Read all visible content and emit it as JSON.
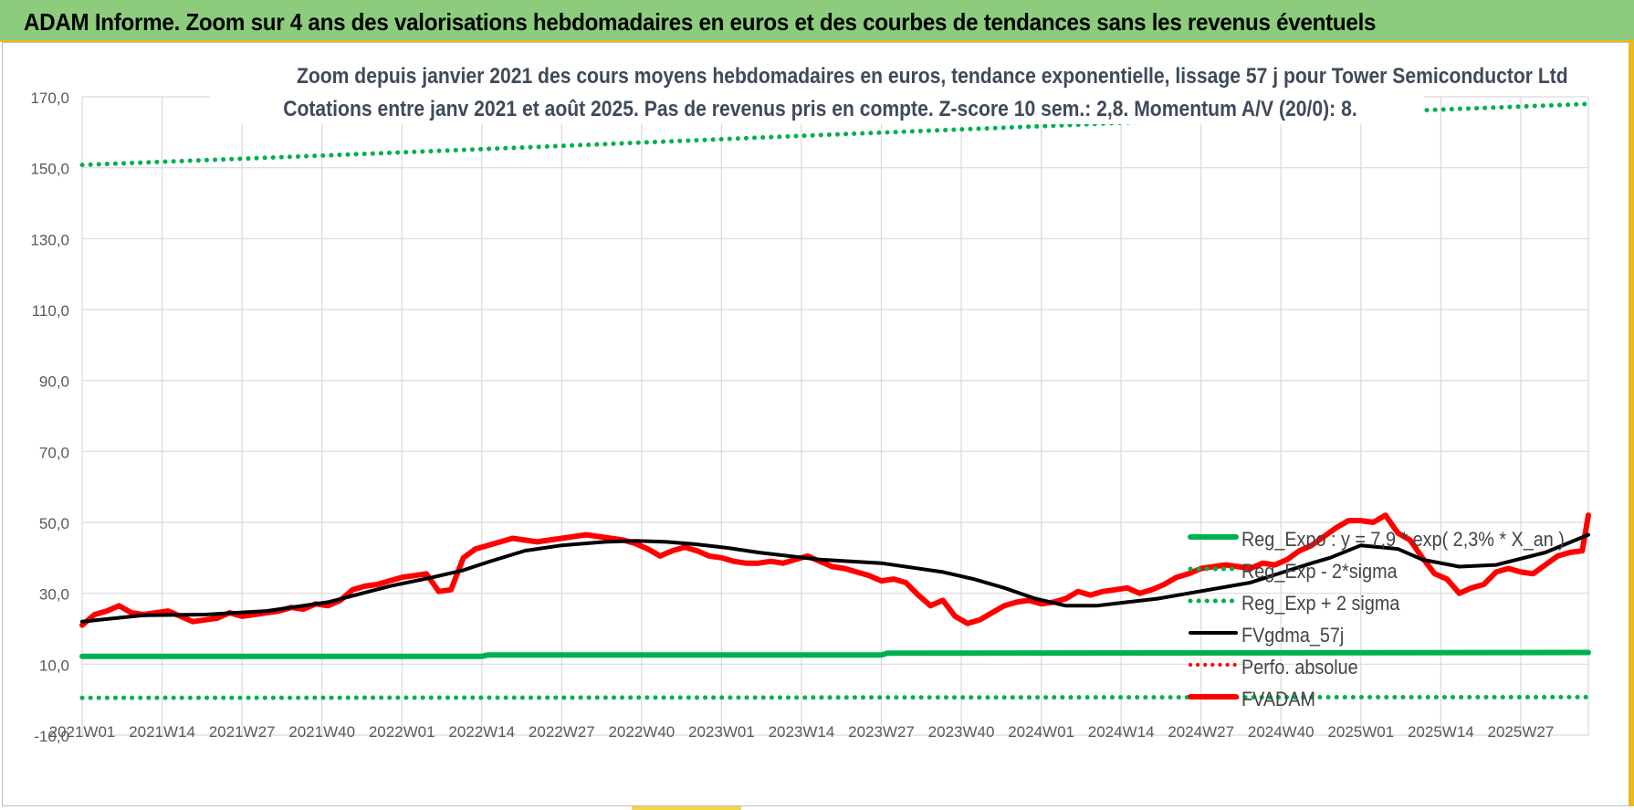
{
  "banner": {
    "title": "ADAM Informe. Zoom sur 4 ans des valorisations hebdomadaires en euros et des courbes de tendances sans les revenus éventuels"
  },
  "chart_data": {
    "type": "line",
    "title": "Zoom depuis janvier 2021 des cours moyens hebdomadaires en euros, tendance exponentielle, lissage 57 j pour Tower Semiconductor Ltd",
    "subtitle": "Cotations entre janv 2021 et août 2025. Pas de revenus pris en compte. Z-score 10 sem.: 2,8. Momentum A/V (20/0): 8.",
    "xlabel": "",
    "ylabel": "",
    "ylim": [
      -10,
      170
    ],
    "yticks": [
      "170,0",
      "150,0",
      "130,0",
      "110,0",
      "90,0",
      "70,0",
      "50,0",
      "30,0",
      "10,0",
      "-10,0"
    ],
    "ytick_values": [
      170,
      150,
      130,
      110,
      90,
      70,
      50,
      30,
      10,
      -10
    ],
    "xticks": [
      "2021W01",
      "2021W14",
      "2021W27",
      "2021W40",
      "2022W01",
      "2022W14",
      "2022W27",
      "2022W40",
      "2023W01",
      "2023W14",
      "2023W27",
      "2023W40",
      "2024W01",
      "2024W14",
      "2024W27",
      "2024W40",
      "2025W01",
      "2025W14",
      "2025W27"
    ],
    "week_range": [
      0,
      245
    ],
    "grid": true,
    "legend_position": "right",
    "series": [
      {
        "name": "Reg_Expo : y = 7,9 * exp( 2,3% *  X_an )",
        "color": "#00b050",
        "style": "solid",
        "x": [
          0,
          65,
          66,
          130,
          131,
          245
        ],
        "y": [
          12.2,
          12.2,
          12.6,
          12.6,
          13.1,
          13.3
        ]
      },
      {
        "name": "Reg_Exp - 2*sigma",
        "color": "#00b050",
        "style": "dotted",
        "x": [
          0,
          245
        ],
        "y": [
          0.5,
          0.7
        ]
      },
      {
        "name": "Reg_Exp + 2 sigma",
        "color": "#00b050",
        "style": "dotted",
        "x": [
          0,
          40,
          80,
          120,
          160,
          200,
          245
        ],
        "y": [
          150.8,
          153.5,
          156.3,
          159.2,
          162,
          165,
          168
        ]
      },
      {
        "name": "FVgdma_57j",
        "color": "#000000",
        "style": "solid",
        "x": [
          0,
          10,
          20,
          30,
          40,
          50,
          57,
          62,
          66,
          72,
          78,
          85,
          90,
          95,
          100,
          105,
          110,
          120,
          130,
          140,
          145,
          150,
          155,
          160,
          165,
          170,
          175,
          180,
          190,
          200,
          203,
          208,
          214,
          218,
          224,
          230,
          238,
          245
        ],
        "y": [
          22,
          23.8,
          24,
          25,
          27.5,
          32,
          34.5,
          36.5,
          38.8,
          42,
          43.5,
          44.5,
          44.8,
          44.5,
          43.8,
          42.8,
          41.5,
          39.5,
          38.5,
          36,
          34,
          31.5,
          28.5,
          26.5,
          26.5,
          27.5,
          28.5,
          30,
          33,
          38.5,
          40,
          43.5,
          42.5,
          39.5,
          37.5,
          38,
          41.5,
          46.5
        ]
      },
      {
        "name": "Perfo. absolue",
        "color": "#ff0000",
        "style": "dotted",
        "x": [],
        "y": []
      },
      {
        "name": "FVADAM",
        "color": "#ff0000",
        "style": "solid",
        "x": [
          0,
          2,
          4,
          6,
          8,
          10,
          12,
          14,
          16,
          18,
          20,
          22,
          24,
          26,
          28,
          30,
          32,
          34,
          36,
          38,
          40,
          42,
          44,
          46,
          48,
          50,
          52,
          54,
          56,
          58,
          60,
          62,
          64,
          66,
          68,
          70,
          72,
          74,
          76,
          78,
          80,
          82,
          84,
          86,
          88,
          90,
          92,
          94,
          96,
          98,
          100,
          102,
          104,
          106,
          108,
          110,
          112,
          114,
          116,
          118,
          120,
          122,
          124,
          126,
          128,
          130,
          132,
          134,
          136,
          138,
          140,
          142,
          144,
          146,
          148,
          150,
          152,
          154,
          156,
          158,
          160,
          162,
          164,
          166,
          168,
          170,
          172,
          174,
          176,
          178,
          180,
          182,
          184,
          186,
          188,
          190,
          192,
          194,
          196,
          198,
          200,
          202,
          204,
          206,
          208,
          210,
          212,
          214,
          216,
          218,
          220,
          222,
          224,
          226,
          228,
          230,
          232,
          234,
          236,
          238,
          240,
          242,
          244,
          245
        ],
        "y": [
          21,
          24,
          25,
          26.5,
          24.5,
          24,
          24.5,
          25,
          23.5,
          22,
          22.5,
          23,
          24.5,
          23.5,
          24,
          24.5,
          25,
          26,
          25.5,
          27,
          26.5,
          28,
          31,
          32,
          32.5,
          33.5,
          34.5,
          35,
          35.5,
          30.5,
          31,
          40,
          42.5,
          43.5,
          44.5,
          45.5,
          45,
          44.5,
          45,
          45.5,
          46,
          46.5,
          46,
          45.5,
          45,
          44,
          42.5,
          40.5,
          42,
          43,
          42,
          40.5,
          40,
          39,
          38.5,
          38.5,
          39,
          38.5,
          39.5,
          40.5,
          39,
          37.5,
          37,
          36,
          35,
          33.5,
          34,
          33,
          29.5,
          26.5,
          28,
          23.5,
          21.5,
          22.5,
          24.5,
          26.5,
          27.5,
          28,
          27,
          27.5,
          28.5,
          30.5,
          29.5,
          30.5,
          31,
          31.5,
          30,
          31,
          32.5,
          34.5,
          35.5,
          37,
          37.5,
          38,
          37.5,
          37,
          38.5,
          38,
          39.5,
          42,
          43.5,
          46,
          48.5,
          50.5,
          50.5,
          50,
          52,
          47,
          45,
          40,
          35.5,
          34,
          30,
          31.5,
          32.5,
          36,
          37,
          36,
          35.5,
          38,
          40.5,
          41.5,
          42,
          52
        ]
      }
    ]
  }
}
